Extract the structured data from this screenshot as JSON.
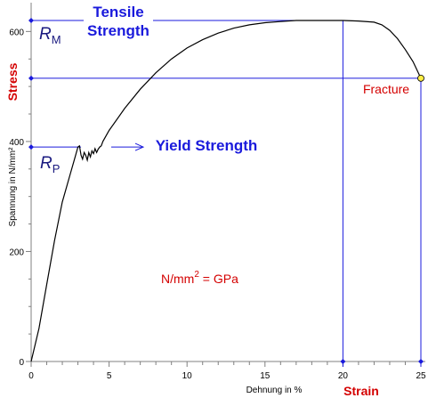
{
  "chart_data": {
    "type": "line",
    "xlabel": "Dehnung in %",
    "ylabel": "Spannung in N/mm²",
    "xlim": [
      0,
      25
    ],
    "ylim": [
      0,
      620
    ],
    "x_ticks": [
      0,
      5,
      10,
      15,
      20,
      25
    ],
    "y_ticks": [
      0,
      200,
      400,
      600
    ],
    "x_tick_labels": [
      "0",
      "5",
      "10",
      "15",
      "20",
      "25"
    ],
    "y_tick_labels": [
      "0",
      "200",
      "400",
      "600"
    ],
    "grid": false,
    "series": [
      {
        "x": [
          0,
          0.5,
          1.0,
          1.5,
          2.0,
          2.5,
          2.8,
          3.0,
          3.1,
          3.2,
          3.3,
          3.4,
          3.5,
          3.6,
          3.7,
          3.8,
          3.9,
          4.0,
          4.1,
          4.2,
          4.3,
          4.4,
          4.5,
          4.6,
          5.0,
          6.0,
          7.0,
          8.0,
          9.0,
          10.0,
          11.0,
          12.0,
          13.0,
          14.0,
          15.0,
          16.0,
          17.0,
          18.0,
          19.0,
          20.0,
          21.0,
          22.0,
          22.5,
          23.0,
          23.5,
          24.0,
          24.5,
          25.0
        ],
        "y": [
          0,
          60,
          140,
          220,
          290,
          340,
          370,
          390,
          392,
          375,
          368,
          380,
          375,
          366,
          380,
          372,
          383,
          378,
          387,
          380,
          386,
          390,
          392,
          400,
          420,
          460,
          495,
          525,
          550,
          570,
          585,
          597,
          606,
          612,
          616,
          618,
          620,
          620,
          620,
          620,
          619,
          617,
          612,
          602,
          587,
          567,
          545,
          515
        ]
      }
    ],
    "annotations": {
      "stress": "Stress",
      "strain": "Strain",
      "tensile_strength": [
        "Tensile",
        "Strength"
      ],
      "yield_strength": "Yield Strength",
      "fracture": "Fracture",
      "rm_symbol": "R",
      "rm_subscript": "M",
      "rp_symbol": "R",
      "rp_subscript": "P",
      "unit_base": "N/mm",
      "unit_exp": "2",
      "unit_rest": " = GPa",
      "tensile_strength_value": 620,
      "yield_strength_value": 390,
      "fracture_stress": 515,
      "uniform_elongation": 20,
      "fracture_strain": 25
    },
    "colors": {
      "curve": "#000000",
      "guide_lines": "#1a1adc",
      "blue_text": "#1a1adc",
      "red_text": "#d40000",
      "fracture_point_fill": "#ffee44",
      "axis": "#808080"
    }
  }
}
